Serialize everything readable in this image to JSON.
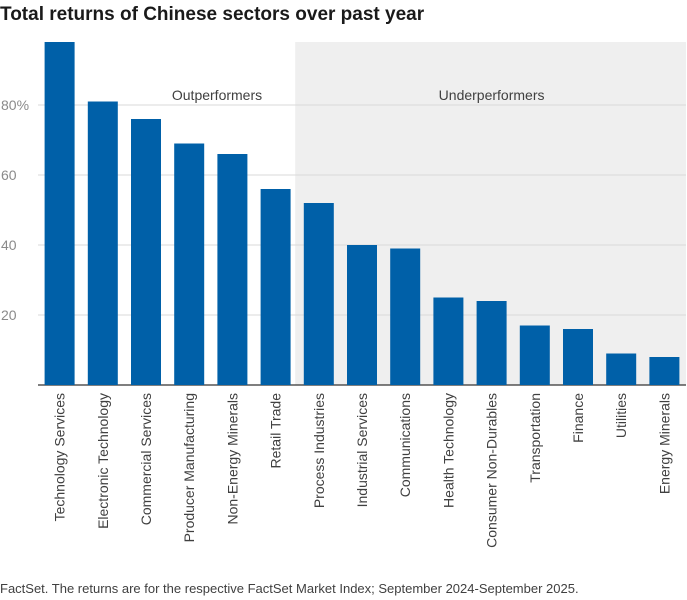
{
  "title": "Total returns of Chinese sectors over past year",
  "source": "FactSet. The returns are for the respective FactSet Market Index; September 2024-September 2025.",
  "colors": {
    "bar": "#0060a8",
    "shade": "#efefef",
    "axis": "#333333",
    "grid": "#d9d9d9",
    "text": "#404040"
  },
  "chart_data": {
    "type": "bar",
    "title": "Total returns of Chinese sectors over past year",
    "xlabel": "",
    "ylabel": "",
    "ylim": [
      0,
      98
    ],
    "yticks": [
      20,
      40,
      60,
      80
    ],
    "ytick_labels": [
      "20",
      "40",
      "60",
      "80%"
    ],
    "grid": true,
    "categories": [
      "Technology Services",
      "Electronic Technology",
      "Commercial Services",
      "Producer Manufacturing",
      "Non-Energy Minerals",
      "Retail Trade",
      "Process Industries",
      "Industrial Services",
      "Communications",
      "Health Technology",
      "Consumer Non-Durables",
      "Transportation",
      "Finance",
      "Utilities",
      "Energy Minerals"
    ],
    "values": [
      98,
      81,
      76,
      69,
      66,
      56,
      52,
      40,
      39,
      25,
      24,
      17,
      16,
      9,
      8
    ],
    "groups": [
      {
        "label": "Outperformers",
        "shaded": false,
        "from_index": 0,
        "to_index": 5
      },
      {
        "label": "Underperformers",
        "shaded": true,
        "from_index": 6,
        "to_index": 14
      }
    ]
  }
}
